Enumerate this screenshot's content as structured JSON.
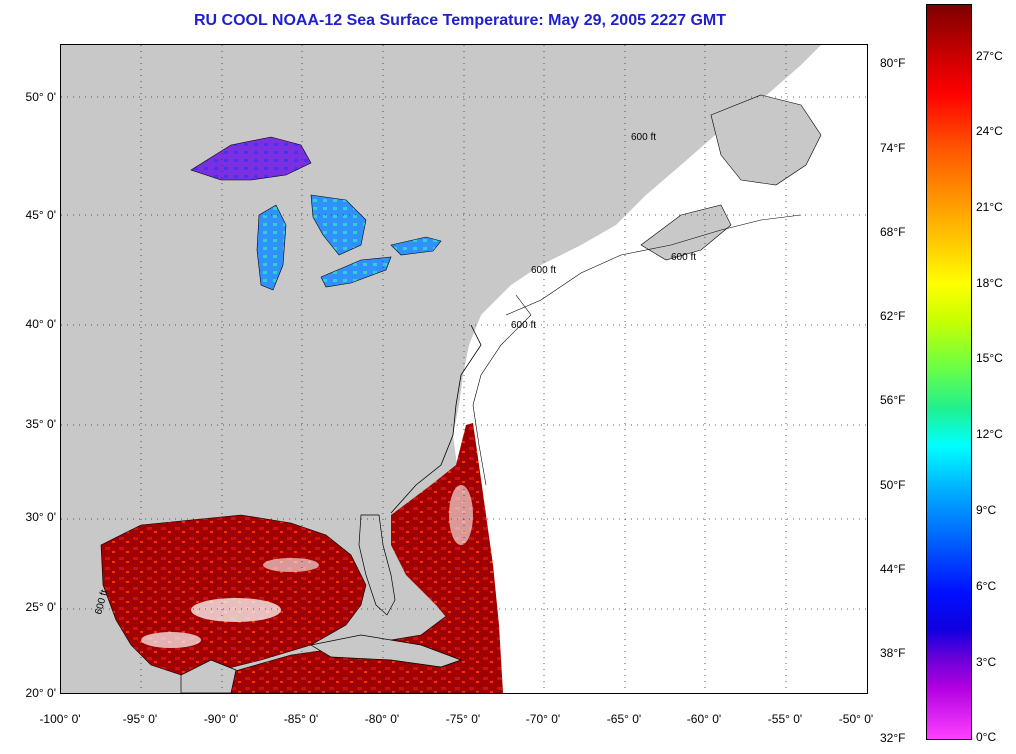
{
  "title": "RU COOL  NOAA-12  Sea Surface Temperature:  May 29, 2005 2227 GMT",
  "map": {
    "lon_range": [
      -100,
      -50
    ],
    "lat_range": [
      20,
      52
    ],
    "grid": "dotted",
    "land_color": "#c8c8c8",
    "cloud_color": "#ffffff",
    "isobath_label": "600 ft"
  },
  "lat_labels": [
    "50° 0'",
    "45° 0'",
    "40° 0'",
    "35° 0'",
    "30° 0'",
    "25° 0'",
    "20° 0'"
  ],
  "lon_labels": [
    "-100° 0'",
    "-95° 0'",
    "-90° 0'",
    "-85° 0'",
    "-80° 0'",
    "-75° 0'",
    "-70° 0'",
    "-65° 0'",
    "-60° 0'",
    "-55° 0'",
    "-50° 0'"
  ],
  "colorbar": {
    "fahrenheit": [
      "80°F",
      "74°F",
      "68°F",
      "62°F",
      "56°F",
      "50°F",
      "44°F",
      "38°F",
      "32°F"
    ],
    "celsius": [
      "27°C",
      "24°C",
      "21°C",
      "18°C",
      "15°C",
      "12°C",
      "9°C",
      "6°C",
      "3°C",
      "0°C"
    ]
  }
}
